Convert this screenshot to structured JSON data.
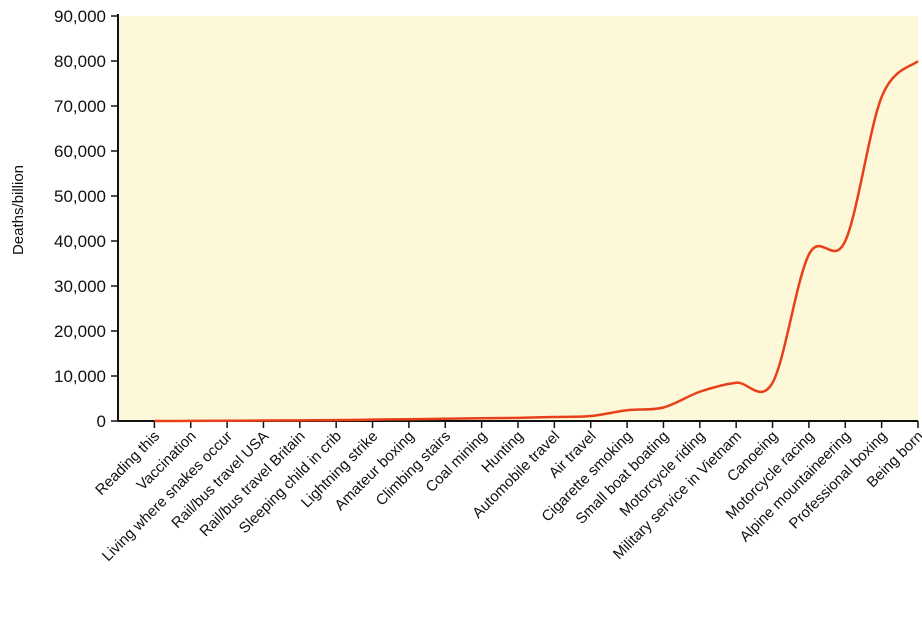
{
  "chart_data": {
    "type": "line",
    "title": "",
    "xlabel": "",
    "ylabel": "Deaths/billion",
    "ylim": [
      0,
      90000
    ],
    "yticks": [
      "0",
      "10,000",
      "20,000",
      "30,000",
      "40,000",
      "50,000",
      "60,000",
      "70,000",
      "80,000",
      "90,000"
    ],
    "grid": false,
    "colors": {
      "line": "#e8401a",
      "plot_bg": "#fdf8d8",
      "axis": "#111111"
    },
    "categories": [
      "Reading this",
      "Vaccination",
      "Living where snakes occur",
      "Rail/bus travel USA",
      "Rail/bus travel Britain",
      "Sleeping child in crib",
      "Lightning strike",
      "Amateur boxing",
      "Climbing stairs",
      "Coal mining",
      "Hunting",
      "Automobile travel",
      "Air travel",
      "Cigarette smoking",
      "Small boat boating",
      "Motorcycle riding",
      "Military service in Vietnam",
      "Canoeing",
      "Motorcycle racing",
      "Alpine mountaineering",
      "Professional boxing",
      "Being born"
    ],
    "values": [
      0,
      20,
      50,
      100,
      150,
      200,
      300,
      400,
      500,
      600,
      700,
      900,
      1100,
      2400,
      3000,
      6500,
      8500,
      8500,
      37000,
      40000,
      72000,
      80000
    ]
  }
}
